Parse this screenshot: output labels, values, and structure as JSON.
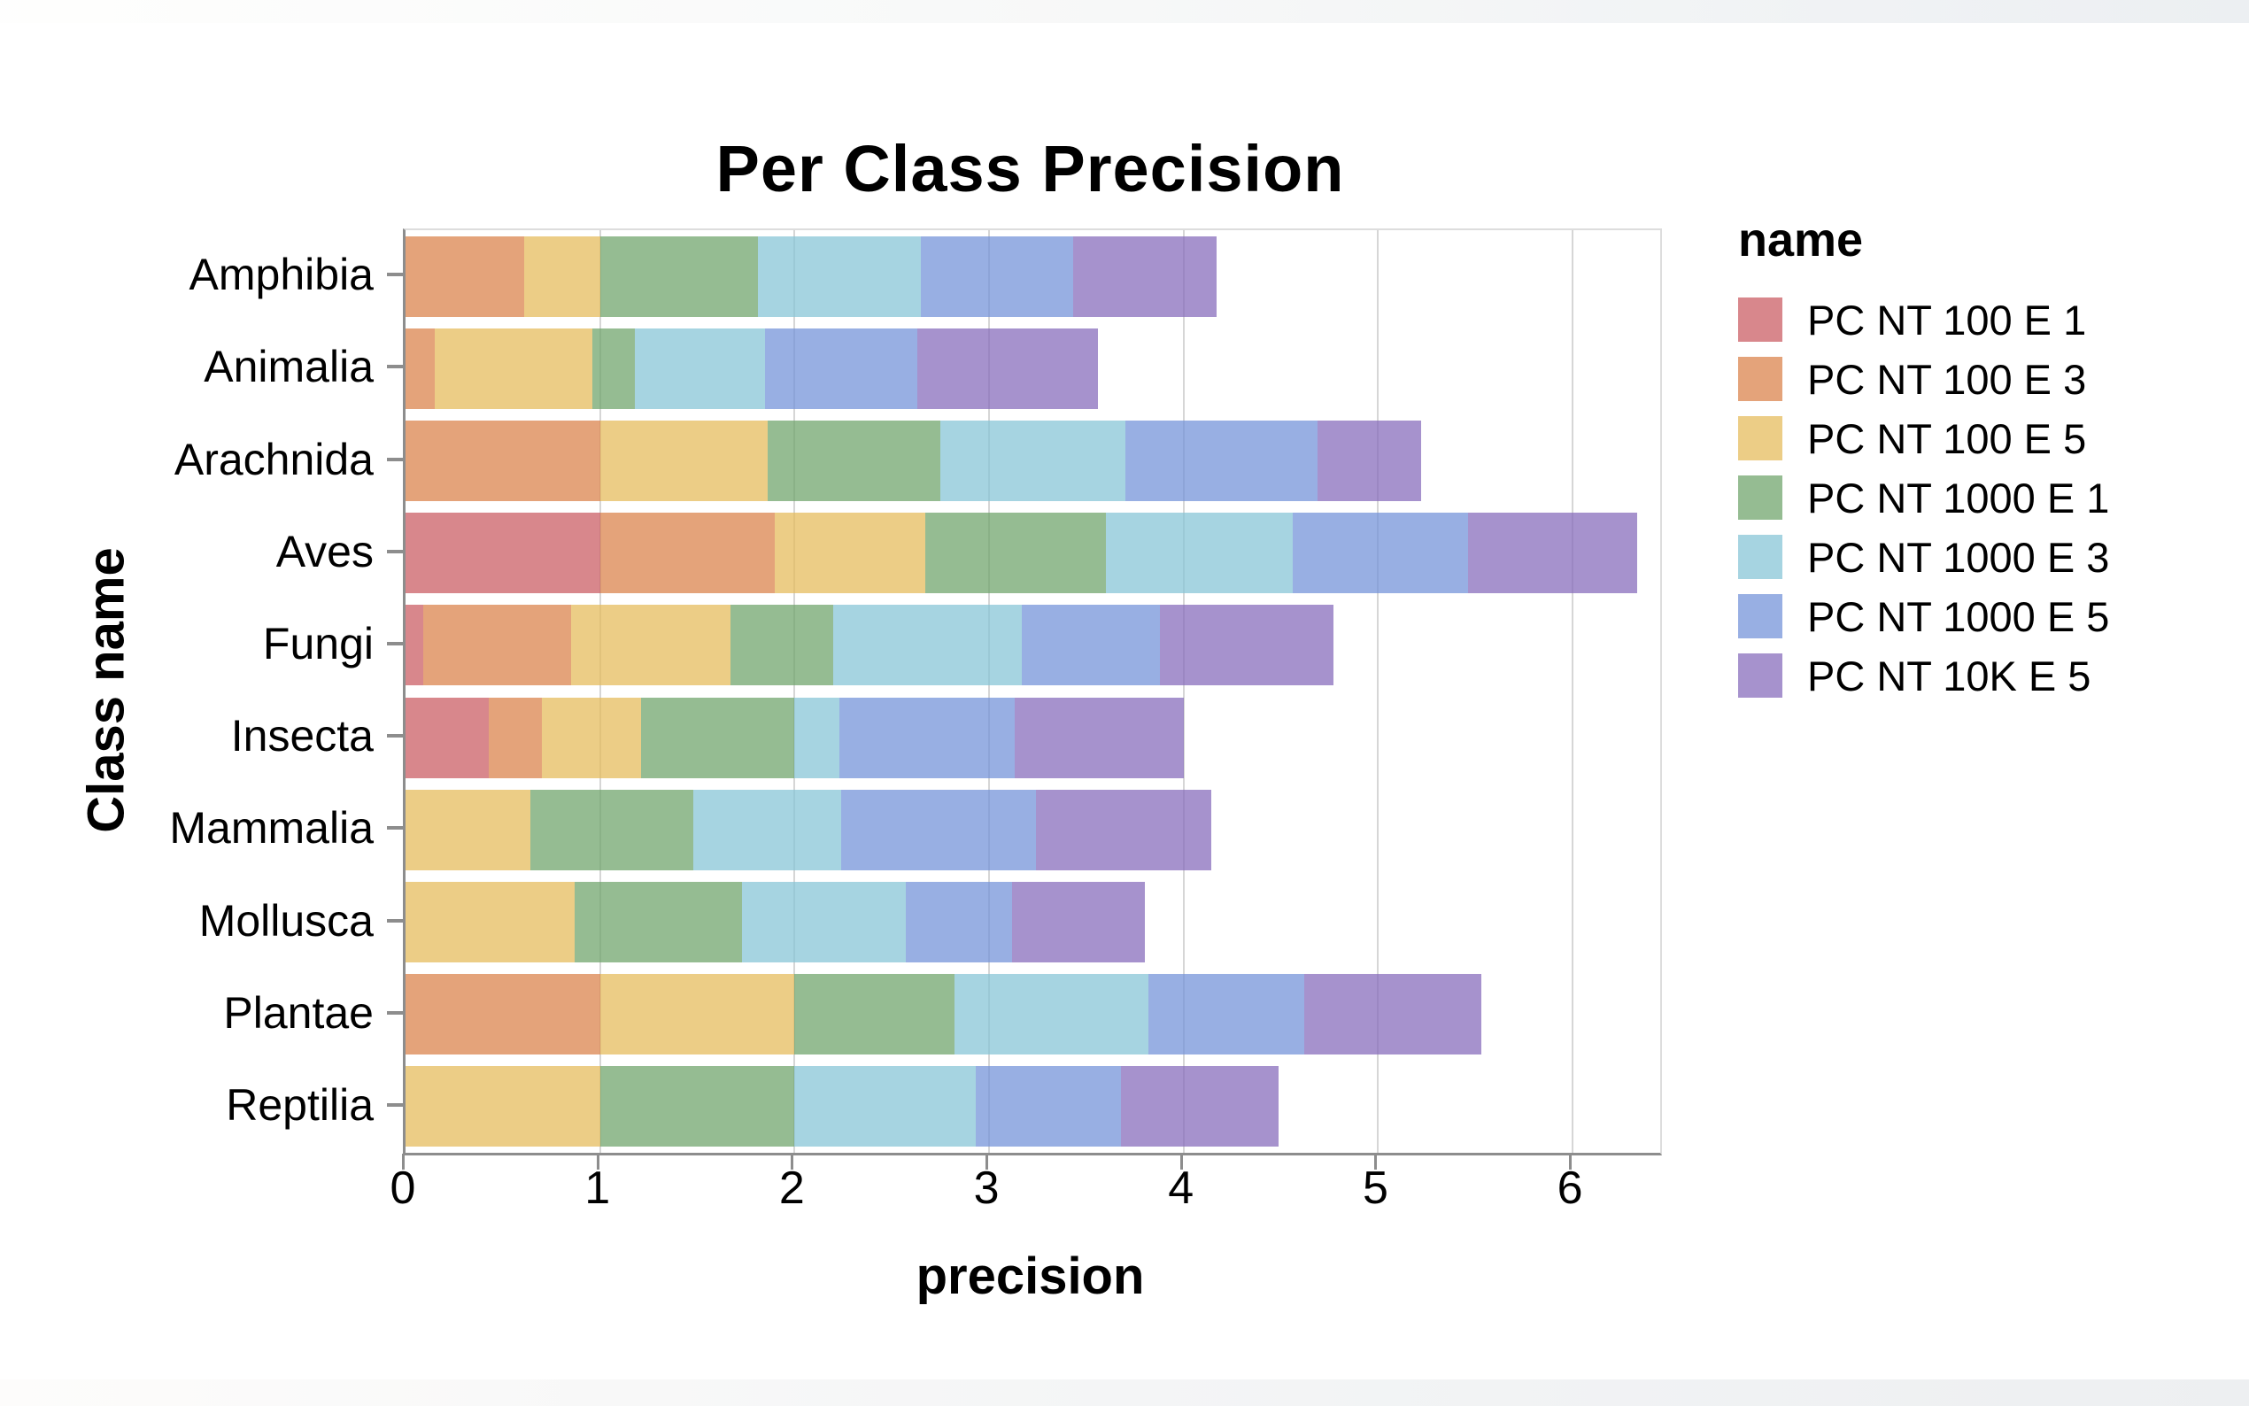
{
  "chart_data": {
    "type": "bar",
    "orientation": "horizontal",
    "stacked": true,
    "title": "Per Class Precision",
    "xlabel": "precision",
    "ylabel": "Class name",
    "legend_title": "name",
    "legend_position": "right",
    "grid": true,
    "xlim": [
      0,
      6.45
    ],
    "x_ticks": [
      0,
      1,
      2,
      3,
      4,
      5,
      6
    ],
    "bar_opacity": 0.72,
    "gridline_color": "#d6d6d6",
    "axis_line_color": "#8d8d8d",
    "categories": [
      "Amphibia",
      "Animalia",
      "Arachnida",
      "Aves",
      "Fungi",
      "Insecta",
      "Mammalia",
      "Mollusca",
      "Plantae",
      "Reptilia"
    ],
    "series": [
      {
        "name": "PC NT 100 E 1",
        "color": "#c9595f",
        "values": [
          0,
          0,
          0,
          1.0,
          0.09,
          0.43,
          0,
          0,
          0,
          0
        ]
      },
      {
        "name": "PC NT 100 E 3",
        "color": "#da8047",
        "values": [
          0.61,
          0.15,
          1.0,
          0.9,
          0.76,
          0.27,
          0,
          0,
          1.0,
          0
        ]
      },
      {
        "name": "PC NT 100 E 5",
        "color": "#e5ba58",
        "values": [
          0.39,
          0.81,
          0.86,
          0.77,
          0.82,
          0.51,
          0.64,
          0.87,
          1.0,
          1.0
        ]
      },
      {
        "name": "PC NT 1000 E 1",
        "color": "#6ca268",
        "values": [
          0.81,
          0.22,
          0.89,
          0.93,
          0.53,
          0.79,
          0.84,
          0.86,
          0.82,
          1.0
        ]
      },
      {
        "name": "PC NT 1000 E 3",
        "color": "#84c4d6",
        "values": [
          0.84,
          0.67,
          0.95,
          0.96,
          0.97,
          0.23,
          0.76,
          0.84,
          1.0,
          0.93
        ]
      },
      {
        "name": "PC NT 1000 E 5",
        "color": "#7090d8",
        "values": [
          0.78,
          0.78,
          0.99,
          0.9,
          0.71,
          0.9,
          1.0,
          0.55,
          0.8,
          0.75
        ]
      },
      {
        "name": "PC NT 10K E 5",
        "color": "#8468ba",
        "values": [
          0.74,
          0.93,
          0.53,
          0.87,
          0.89,
          0.87,
          0.9,
          0.68,
          0.91,
          0.81
        ]
      }
    ],
    "totals": [
      4.17,
      3.56,
      5.22,
      6.33,
      4.77,
      4.0,
      4.14,
      3.8,
      5.53,
      4.49
    ]
  }
}
